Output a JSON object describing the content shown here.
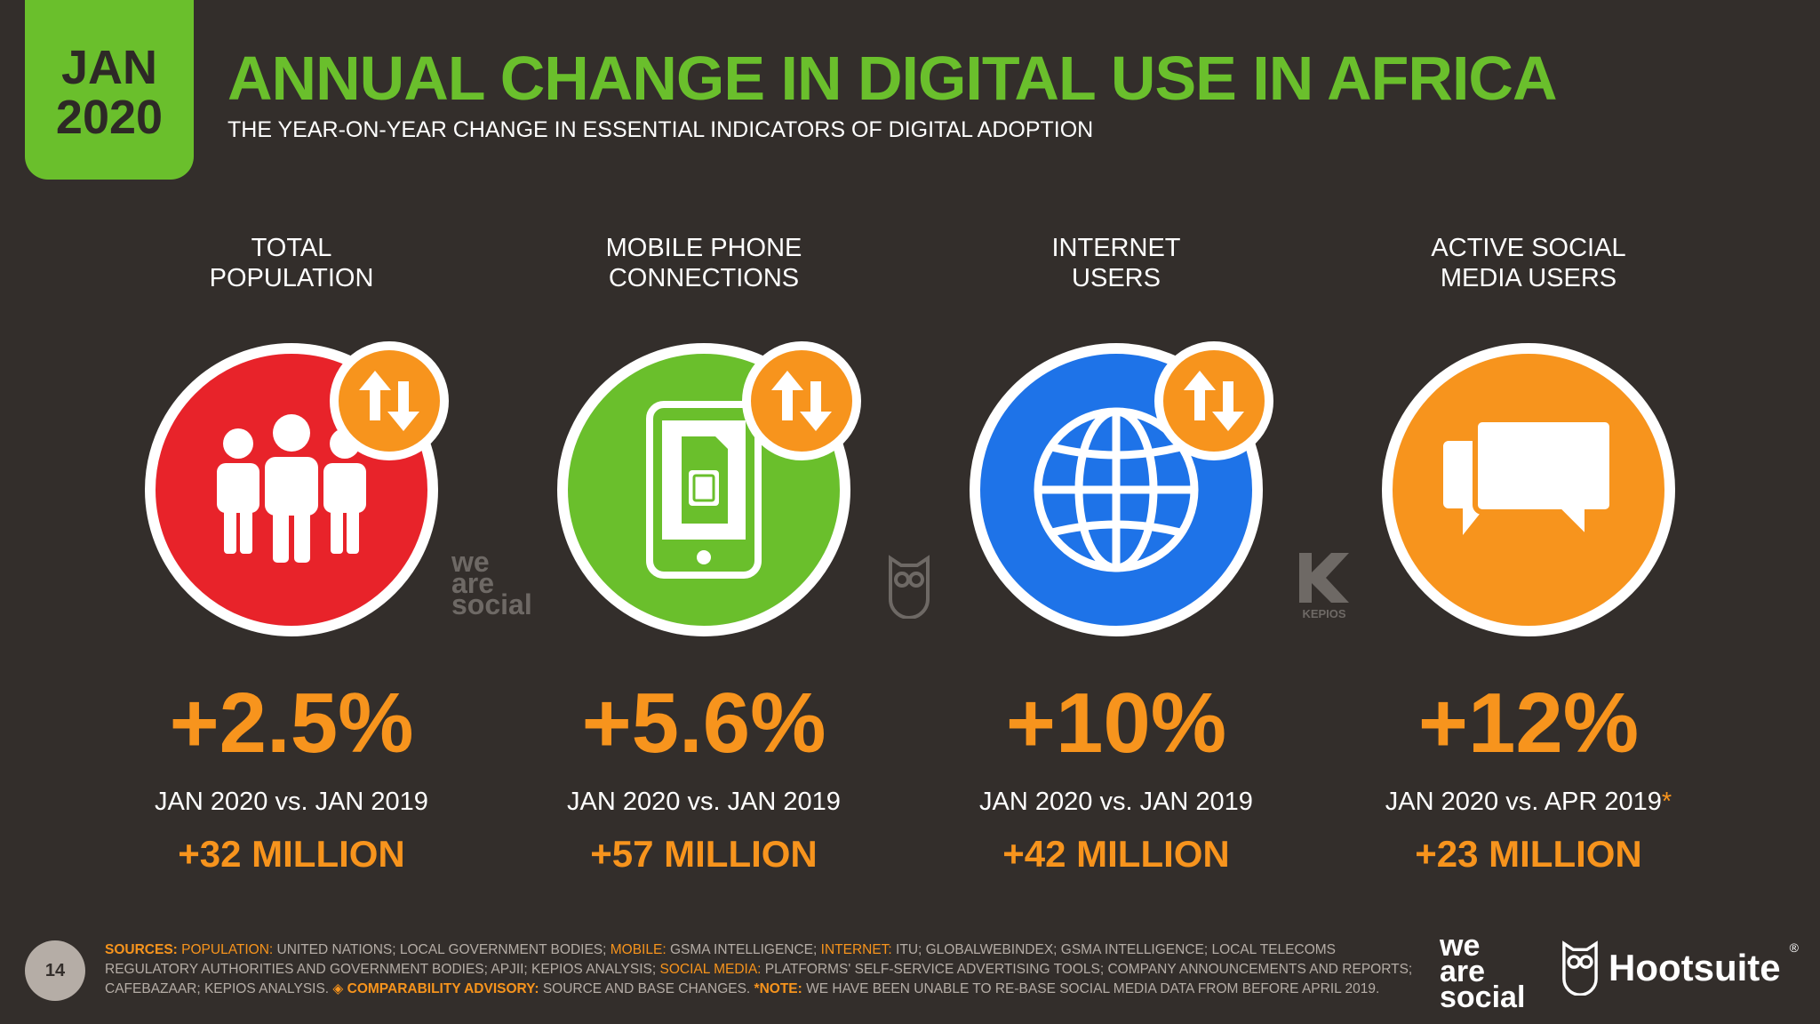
{
  "badge": {
    "month": "JAN",
    "year": "2020"
  },
  "header": {
    "title": "ANNUAL CHANGE IN DIGITAL USE IN AFRICA",
    "subtitle": "THE YEAR-ON-YEAR CHANGE IN ESSENTIAL INDICATORS OF DIGITAL ADOPTION"
  },
  "colors": {
    "green": "#6abf2c",
    "orange": "#f7941d",
    "red": "#e8232a",
    "blue": "#1e73e8",
    "background": "#332e2b"
  },
  "stats": [
    {
      "label_line1": "TOTAL",
      "label_line2": "POPULATION",
      "icon": "people-icon",
      "color": "#e8232a",
      "percent": "+2.5%",
      "comparison": "JAN 2020 vs. JAN 2019",
      "star": "",
      "absolute": "+32 MILLION"
    },
    {
      "label_line1": "MOBILE PHONE",
      "label_line2": "CONNECTIONS",
      "icon": "mobile-phone-icon",
      "color": "#6abf2c",
      "percent": "+5.6%",
      "comparison": "JAN 2020 vs. JAN 2019",
      "star": "",
      "absolute": "+57 MILLION"
    },
    {
      "label_line1": "INTERNET",
      "label_line2": "USERS",
      "icon": "globe-icon",
      "color": "#1e73e8",
      "percent": "+10%",
      "comparison": "JAN 2020 vs. JAN 2019",
      "star": "",
      "absolute": "+42 MILLION"
    },
    {
      "label_line1": "ACTIVE SOCIAL",
      "label_line2": "MEDIA USERS",
      "icon": "chat-bubbles-icon",
      "color": "#f7941d",
      "percent": "+12%",
      "comparison": "JAN 2020 vs. APR 2019",
      "star": "*",
      "absolute": "+23 MILLION"
    }
  ],
  "watermarks": {
    "we": "we",
    "are": "are",
    "social": "social",
    "kepios": "KEPIOS"
  },
  "footer": {
    "page_number": "14",
    "s1_label": "SOURCES:",
    "s2_label": "POPULATION:",
    "s2_text": " UNITED NATIONS; LOCAL GOVERNMENT BODIES; ",
    "s3_label": "MOBILE:",
    "s3_text": " GSMA INTELLIGENCE; ",
    "s4_label": "INTERNET:",
    "s4_text": " ITU; GLOBALWEBINDEX; GSMA INTELLIGENCE; LOCAL TELECOMS REGULATORY AUTHORITIES AND GOVERNMENT BODIES; APJII; KEPIOS ANALYSIS; ",
    "s5_label": "SOCIAL MEDIA:",
    "s5_text": " PLATFORMS' SELF-SERVICE ADVERTISING TOOLS; COMPANY ANNOUNCEMENTS AND REPORTS; CAFEBAZAAR; KEPIOS ANALYSIS. ",
    "s6_label": "◈ COMPARABILITY ADVISORY:",
    "s6_text": " SOURCE AND BASE CHANGES. ",
    "s7_label": "*NOTE:",
    "s7_text": " WE HAVE BEEN UNABLE TO RE-BASE SOCIAL MEDIA DATA FROM BEFORE APRIL 2019."
  },
  "brands": {
    "was_line1": "we",
    "was_line2": "are",
    "was_line3": "social",
    "hootsuite": "Hootsuite",
    "trademark": "®"
  }
}
